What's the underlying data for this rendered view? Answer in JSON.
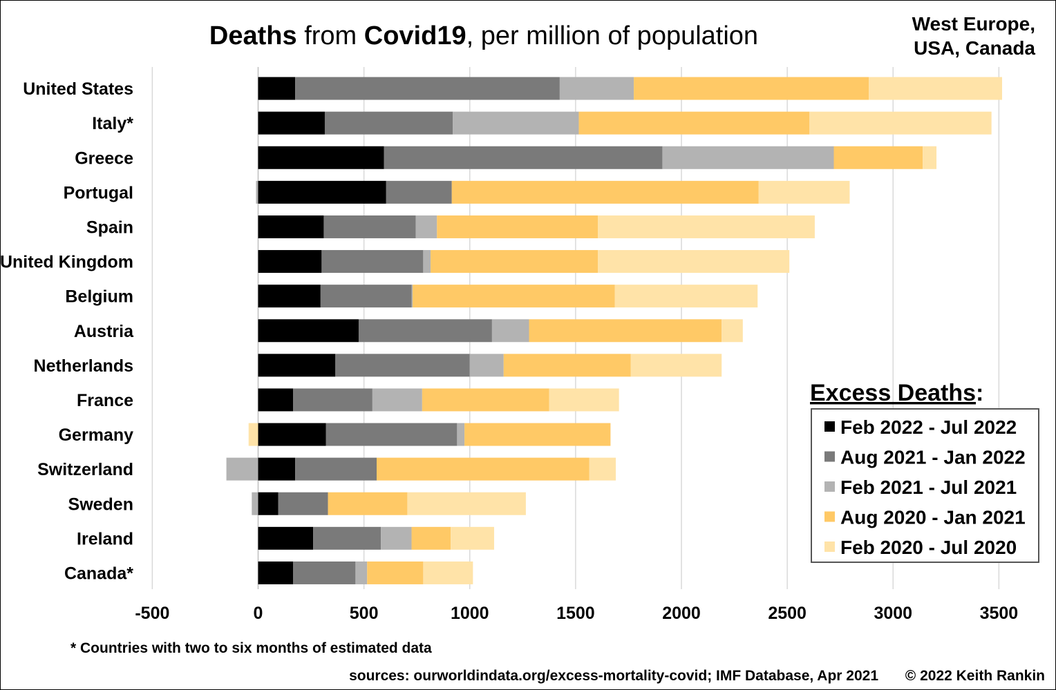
{
  "title": {
    "part1": "Deaths",
    "part2": " from ",
    "part3": "Covid19",
    "part4": ", per million of population"
  },
  "region": {
    "line1": "West Europe,",
    "line2": "USA, Canada"
  },
  "footnote": "* Countries with two to six months of estimated data",
  "sources": "sources: ourworldindata.org/excess-mortality-covid; IMF Database, Apr 2021",
  "copyright": "© 2022 Keith Rankin",
  "legend": {
    "title": "Excess Deaths",
    "colon": ":"
  },
  "chart_data": {
    "type": "bar",
    "orientation": "horizontal",
    "stacked": true,
    "title": "Deaths from Covid19, per million of population",
    "xlim": [
      -500,
      3500
    ],
    "x_ticks": [
      -500,
      0,
      500,
      1000,
      1500,
      2000,
      2500,
      3000,
      3500
    ],
    "grid": "vertical",
    "legend_position": "right",
    "categories": [
      "United States",
      "Italy*",
      "Greece",
      "Portugal",
      "Spain",
      "United Kingdom",
      "Belgium",
      "Austria",
      "Netherlands",
      "France",
      "Germany",
      "Switzerland",
      "Sweden",
      "Ireland",
      "Canada*"
    ],
    "series": [
      {
        "name": "Feb 2022 - Jul 2022",
        "color": "#000000",
        "values": [
          175,
          315,
          595,
          605,
          310,
          300,
          295,
          475,
          365,
          165,
          320,
          175,
          95,
          260,
          165
        ]
      },
      {
        "name": "Aug 2021 - Jan 2022",
        "color": "#7a7a7a",
        "values": [
          1250,
          605,
          1315,
          310,
          435,
          480,
          430,
          630,
          635,
          375,
          620,
          385,
          235,
          320,
          295
        ]
      },
      {
        "name": "Feb 2021 - Jul 2021",
        "color": "#b3b3b3",
        "values": [
          350,
          595,
          810,
          -10,
          100,
          35,
          5,
          175,
          160,
          235,
          35,
          -150,
          -30,
          145,
          55
        ]
      },
      {
        "name": "Aug 2020 - Jan 2021",
        "color": "#ffc966",
        "values": [
          1110,
          1090,
          420,
          1450,
          760,
          790,
          955,
          910,
          600,
          600,
          690,
          1005,
          375,
          185,
          265
        ]
      },
      {
        "name": "Feb 2020 - Jul 2020",
        "color": "#ffe3a8",
        "values": [
          630,
          860,
          65,
          430,
          1025,
          905,
          675,
          100,
          430,
          330,
          -45,
          125,
          560,
          205,
          235
        ]
      }
    ]
  }
}
